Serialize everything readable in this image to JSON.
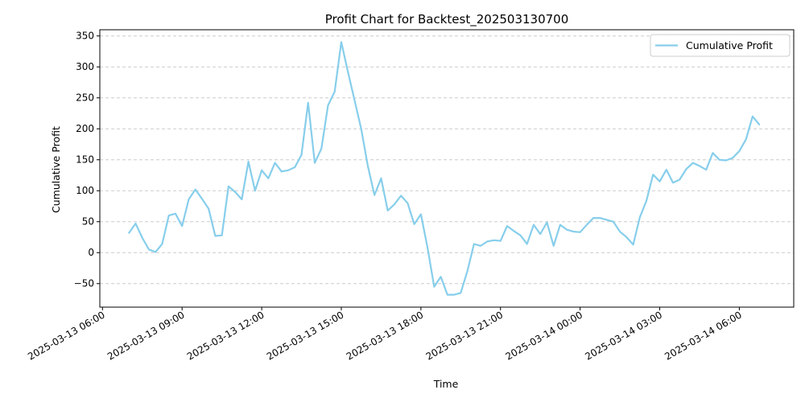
{
  "chart_data": {
    "type": "line",
    "title": "Profit Chart for Backtest_202503130700",
    "xlabel": "Time",
    "ylabel": "Cumulative Profit",
    "xlim": [
      "2025-03-13 05:54",
      "2025-03-14 08:03"
    ],
    "ylim": [
      -88,
      360
    ],
    "grid": {
      "y": true,
      "x": false,
      "style": "dashed"
    },
    "legend_position": "top-right",
    "y_ticks": [
      -50,
      0,
      50,
      100,
      150,
      200,
      250,
      300,
      350
    ],
    "x_ticks": [
      "2025-03-13 06:00",
      "2025-03-13 09:00",
      "2025-03-13 12:00",
      "2025-03-13 15:00",
      "2025-03-13 18:00",
      "2025-03-13 21:00",
      "2025-03-14 00:00",
      "2025-03-14 03:00",
      "2025-03-14 06:00"
    ],
    "series": [
      {
        "name": "Cumulative Profit",
        "color": "#87ceeb",
        "points": [
          [
            "2025-03-13 07:00",
            32
          ],
          [
            "2025-03-13 07:15",
            47
          ],
          [
            "2025-03-13 07:30",
            24
          ],
          [
            "2025-03-13 07:45",
            5
          ],
          [
            "2025-03-13 08:00",
            1
          ],
          [
            "2025-03-13 08:15",
            14
          ],
          [
            "2025-03-13 08:30",
            60
          ],
          [
            "2025-03-13 08:45",
            63
          ],
          [
            "2025-03-13 09:00",
            43
          ],
          [
            "2025-03-13 09:15",
            86
          ],
          [
            "2025-03-13 09:30",
            102
          ],
          [
            "2025-03-13 09:45",
            87
          ],
          [
            "2025-03-13 10:00",
            71
          ],
          [
            "2025-03-13 10:15",
            27
          ],
          [
            "2025-03-13 10:30",
            28
          ],
          [
            "2025-03-13 10:45",
            107
          ],
          [
            "2025-03-13 11:00",
            98
          ],
          [
            "2025-03-13 11:15",
            86
          ],
          [
            "2025-03-13 11:30",
            147
          ],
          [
            "2025-03-13 11:45",
            100
          ],
          [
            "2025-03-13 12:00",
            133
          ],
          [
            "2025-03-13 12:15",
            120
          ],
          [
            "2025-03-13 12:30",
            145
          ],
          [
            "2025-03-13 12:45",
            131
          ],
          [
            "2025-03-13 13:00",
            133
          ],
          [
            "2025-03-13 13:15",
            138
          ],
          [
            "2025-03-13 13:30",
            158
          ],
          [
            "2025-03-13 13:45",
            242
          ],
          [
            "2025-03-13 14:00",
            145
          ],
          [
            "2025-03-13 14:15",
            168
          ],
          [
            "2025-03-13 14:30",
            238
          ],
          [
            "2025-03-13 14:45",
            260
          ],
          [
            "2025-03-13 15:00",
            340
          ],
          [
            "2025-03-13 15:15",
            292
          ],
          [
            "2025-03-13 15:30",
            246
          ],
          [
            "2025-03-13 15:45",
            200
          ],
          [
            "2025-03-13 16:00",
            140
          ],
          [
            "2025-03-13 16:15",
            93
          ],
          [
            "2025-03-13 16:30",
            120
          ],
          [
            "2025-03-13 16:45",
            68
          ],
          [
            "2025-03-13 17:00",
            78
          ],
          [
            "2025-03-13 17:15",
            92
          ],
          [
            "2025-03-13 17:30",
            80
          ],
          [
            "2025-03-13 17:45",
            46
          ],
          [
            "2025-03-13 18:00",
            62
          ],
          [
            "2025-03-13 18:15",
            8
          ],
          [
            "2025-03-13 18:30",
            -55
          ],
          [
            "2025-03-13 18:45",
            -39
          ],
          [
            "2025-03-13 19:00",
            -68
          ],
          [
            "2025-03-13 19:15",
            -68
          ],
          [
            "2025-03-13 19:30",
            -65
          ],
          [
            "2025-03-13 19:45",
            -30
          ],
          [
            "2025-03-13 20:00",
            14
          ],
          [
            "2025-03-13 20:15",
            11
          ],
          [
            "2025-03-13 20:30",
            18
          ],
          [
            "2025-03-13 20:45",
            20
          ],
          [
            "2025-03-13 21:00",
            19
          ],
          [
            "2025-03-13 21:15",
            43
          ],
          [
            "2025-03-13 21:30",
            35
          ],
          [
            "2025-03-13 21:45",
            28
          ],
          [
            "2025-03-13 22:00",
            14
          ],
          [
            "2025-03-13 22:15",
            45
          ],
          [
            "2025-03-13 22:30",
            30
          ],
          [
            "2025-03-13 22:45",
            49
          ],
          [
            "2025-03-13 23:00",
            11
          ],
          [
            "2025-03-13 23:15",
            45
          ],
          [
            "2025-03-13 23:30",
            37
          ],
          [
            "2025-03-13 23:45",
            34
          ],
          [
            "2025-03-14 00:00",
            33
          ],
          [
            "2025-03-14 00:15",
            45
          ],
          [
            "2025-03-14 00:30",
            56
          ],
          [
            "2025-03-14 00:45",
            56
          ],
          [
            "2025-03-14 01:00",
            53
          ],
          [
            "2025-03-14 01:15",
            50
          ],
          [
            "2025-03-14 01:30",
            34
          ],
          [
            "2025-03-14 01:45",
            25
          ],
          [
            "2025-03-14 02:00",
            13
          ],
          [
            "2025-03-14 02:15",
            57
          ],
          [
            "2025-03-14 02:30",
            84
          ],
          [
            "2025-03-14 02:45",
            126
          ],
          [
            "2025-03-14 03:00",
            115
          ],
          [
            "2025-03-14 03:15",
            134
          ],
          [
            "2025-03-14 03:30",
            113
          ],
          [
            "2025-03-14 03:45",
            118
          ],
          [
            "2025-03-14 04:00",
            135
          ],
          [
            "2025-03-14 04:15",
            145
          ],
          [
            "2025-03-14 04:30",
            140
          ],
          [
            "2025-03-14 04:45",
            134
          ],
          [
            "2025-03-14 05:00",
            161
          ],
          [
            "2025-03-14 05:15",
            150
          ],
          [
            "2025-03-14 05:30",
            149
          ],
          [
            "2025-03-14 05:45",
            153
          ],
          [
            "2025-03-14 06:00",
            164
          ],
          [
            "2025-03-14 06:15",
            183
          ],
          [
            "2025-03-14 06:30",
            220
          ],
          [
            "2025-03-14 06:45",
            207
          ]
        ]
      }
    ]
  }
}
